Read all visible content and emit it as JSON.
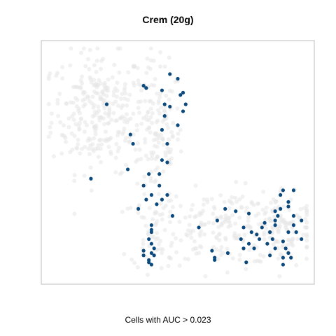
{
  "title": "Crem (20g)",
  "chart_data": {
    "type": "scatter",
    "title": "Crem (20g)",
    "xlabel": "Cells with AUC > 0.023",
    "ylabel": "",
    "xlim": [
      0,
      100
    ],
    "ylim": [
      0,
      100
    ],
    "grid": false,
    "axes_ticks": false,
    "series": [
      {
        "role": "cells-below-threshold",
        "color": "#e6e6e6",
        "clusters": [
          {
            "cx": 20,
            "cy": 72,
            "sx": 9,
            "sy": 13,
            "n": 280
          },
          {
            "cx": 42,
            "cy": 60,
            "sx": 5,
            "sy": 16,
            "n": 140
          },
          {
            "cx": 68,
            "cy": 22,
            "sx": 13,
            "sy": 8,
            "n": 170
          },
          {
            "cx": 90,
            "cy": 22,
            "sx": 7,
            "sy": 9,
            "n": 110
          },
          {
            "cx": 42,
            "cy": 20,
            "sx": 5,
            "sy": 8,
            "n": 50
          }
        ]
      },
      {
        "role": "cells-above-threshold",
        "color": "#0b4a7f",
        "points": [
          [
            47,
            88
          ],
          [
            50,
            86
          ],
          [
            37,
            83
          ],
          [
            38,
            82
          ],
          [
            44,
            81
          ],
          [
            51,
            79
          ],
          [
            52,
            80
          ],
          [
            53,
            75
          ],
          [
            45,
            75
          ],
          [
            23,
            75
          ],
          [
            47,
            74
          ],
          [
            52,
            72
          ],
          [
            45,
            70
          ],
          [
            50,
            66
          ],
          [
            44,
            64
          ],
          [
            32,
            62
          ],
          [
            33,
            58
          ],
          [
            46,
            58
          ],
          [
            44,
            51
          ],
          [
            46,
            50
          ],
          [
            31,
            47
          ],
          [
            39,
            45
          ],
          [
            43,
            45
          ],
          [
            17,
            43
          ],
          [
            43,
            40
          ],
          [
            37,
            40
          ],
          [
            40,
            36
          ],
          [
            46,
            36
          ],
          [
            44,
            34
          ],
          [
            38,
            34
          ],
          [
            42,
            32
          ],
          [
            35,
            30
          ],
          [
            48,
            27
          ],
          [
            90,
            38
          ],
          [
            94,
            38
          ],
          [
            89,
            36
          ],
          [
            92,
            33
          ],
          [
            92,
            31
          ],
          [
            68,
            30
          ],
          [
            89,
            30
          ],
          [
            72,
            29
          ],
          [
            77,
            28
          ],
          [
            87,
            29
          ],
          [
            88,
            27
          ],
          [
            87,
            25
          ],
          [
            94,
            27
          ],
          [
            97,
            25
          ],
          [
            83,
            24
          ],
          [
            87,
            23
          ],
          [
            82,
            22
          ],
          [
            94,
            23
          ],
          [
            75,
            22
          ],
          [
            78,
            20
          ],
          [
            85,
            20
          ],
          [
            92,
            20
          ],
          [
            80,
            19
          ],
          [
            95,
            20
          ],
          [
            81,
            17
          ],
          [
            74,
            17
          ],
          [
            86,
            17
          ],
          [
            90,
            16
          ],
          [
            77,
            15
          ],
          [
            84,
            15
          ],
          [
            75,
            13
          ],
          [
            79,
            13
          ],
          [
            87,
            13
          ],
          [
            91,
            13
          ],
          [
            69,
            11
          ],
          [
            85,
            10
          ],
          [
            90,
            9
          ],
          [
            93,
            9
          ],
          [
            76,
            7
          ],
          [
            90,
            6
          ],
          [
            64,
            9
          ],
          [
            64,
            8
          ],
          [
            40,
            23
          ],
          [
            40,
            21
          ],
          [
            40,
            20
          ],
          [
            39,
            17
          ],
          [
            40,
            15
          ],
          [
            41,
            13
          ],
          [
            40,
            11
          ],
          [
            41,
            10
          ],
          [
            37,
            12
          ],
          [
            37,
            10
          ],
          [
            39,
            8
          ],
          [
            39,
            7
          ],
          [
            40,
            6
          ],
          [
            92,
            11
          ],
          [
            97,
            17
          ],
          [
            65,
            25
          ],
          [
            58,
            22
          ],
          [
            63,
            12
          ]
        ]
      }
    ]
  }
}
